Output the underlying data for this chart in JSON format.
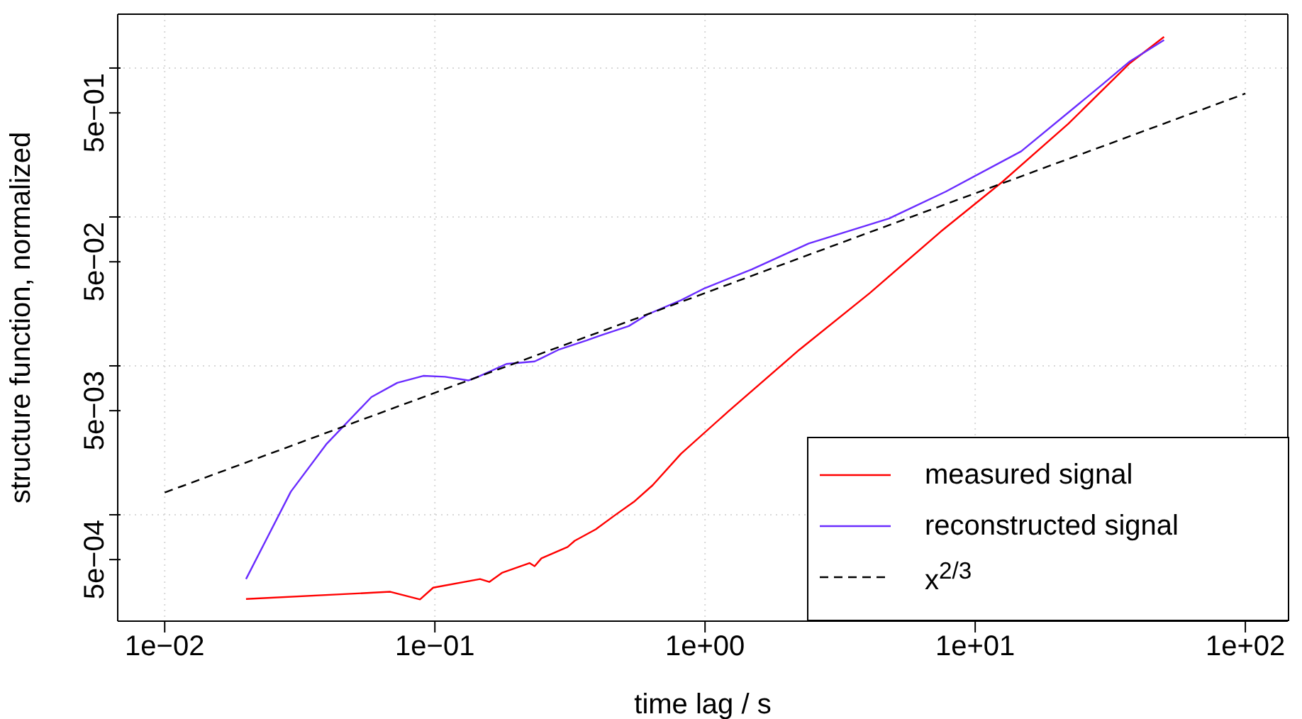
{
  "chart_data": {
    "type": "line",
    "xlabel": "time lag / s",
    "ylabel": "structure function, normalized",
    "log": "xy",
    "grid": true,
    "legend": "bottom right",
    "marker": "none",
    "xlim": [
      0.0067,
      143.6
    ],
    "ylim": [
      0.000193,
      2.3
    ],
    "xticks": [
      {
        "value": 0.01,
        "label": "1e−02"
      },
      {
        "value": 0.1,
        "label": "1e−01"
      },
      {
        "value": 1,
        "label": "1e+00"
      },
      {
        "value": 10,
        "label": "1e+01"
      },
      {
        "value": 100,
        "label": "1e+02"
      }
    ],
    "yticks": [
      {
        "value": 0.0005,
        "label": "5e−04"
      },
      {
        "value": 0.001,
        "label": null
      },
      {
        "value": 0.005,
        "label": "5e−03"
      },
      {
        "value": 0.01,
        "label": null
      },
      {
        "value": 0.05,
        "label": "5e−02"
      },
      {
        "value": 0.1,
        "label": null
      },
      {
        "value": 0.5,
        "label": "5e−01"
      },
      {
        "value": 1,
        "label": null
      }
    ],
    "series": [
      {
        "name": "measured signal",
        "color": "#ff0000",
        "line_style": "solid",
        "x": [
          0.02,
          0.0684,
          0.0881,
          0.0986,
          0.147,
          0.159,
          0.177,
          0.224,
          0.234,
          0.248,
          0.31,
          0.329,
          0.394,
          0.463,
          0.545,
          0.64,
          0.815,
          1.22,
          2.23,
          4.07,
          7.46,
          12.6,
          22.1,
          37.4,
          50
        ],
        "values": [
          0.000272,
          0.000304,
          0.00027,
          0.000324,
          0.00037,
          0.000354,
          0.000407,
          0.000474,
          0.000451,
          0.00051,
          0.000608,
          0.000668,
          0.000798,
          0.00099,
          0.00122,
          0.00158,
          0.00257,
          0.00495,
          0.0128,
          0.0308,
          0.0798,
          0.172,
          0.422,
          1.08,
          1.62
        ]
      },
      {
        "name": "reconstructed signal",
        "color": "#6a2cff",
        "line_style": "solid",
        "x": [
          0.02,
          0.0293,
          0.0396,
          0.0582,
          0.0726,
          0.0906,
          0.109,
          0.133,
          0.147,
          0.184,
          0.234,
          0.286,
          0.364,
          0.41,
          0.522,
          0.614,
          0.815,
          0.996,
          1.49,
          2.42,
          4.8,
          7.78,
          14.8,
          29.4,
          37.4,
          50
        ],
        "values": [
          0.00037,
          0.00143,
          0.00297,
          0.00617,
          0.00769,
          0.00857,
          0.00845,
          0.00798,
          0.00857,
          0.0103,
          0.0107,
          0.0128,
          0.0148,
          0.016,
          0.0185,
          0.0222,
          0.0276,
          0.0332,
          0.0445,
          0.0664,
          0.0977,
          0.148,
          0.276,
          0.769,
          1.11,
          1.54
        ]
      },
      {
        "name": "x$^{2/3}$",
        "color": "#000000",
        "line_style": "dashed",
        "x": [
          0.01,
          100
        ],
        "values": [
          0.00141,
          0.674
        ]
      }
    ]
  }
}
